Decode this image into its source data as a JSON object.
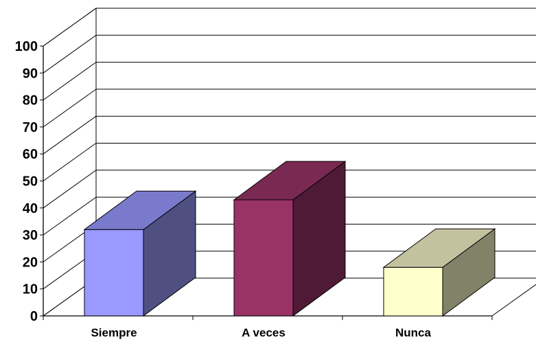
{
  "chart_data": {
    "type": "bar",
    "three_d": true,
    "categories": [
      "Siempre",
      "A veces",
      "Nunca"
    ],
    "values": [
      32,
      43,
      18
    ],
    "ylim": [
      0,
      100
    ],
    "yticks": [
      0,
      10,
      20,
      30,
      40,
      50,
      60,
      70,
      80,
      90,
      100
    ],
    "grid": true,
    "legend": "none",
    "colors": [
      {
        "front": "#9999FF",
        "side": "#4F4F82",
        "top": "#7A7ACC"
      },
      {
        "front": "#993366",
        "side": "#4F1A35",
        "top": "#7A2952"
      },
      {
        "front": "#FFFFCC",
        "side": "#828268",
        "top": "#C2C29E"
      }
    ]
  }
}
